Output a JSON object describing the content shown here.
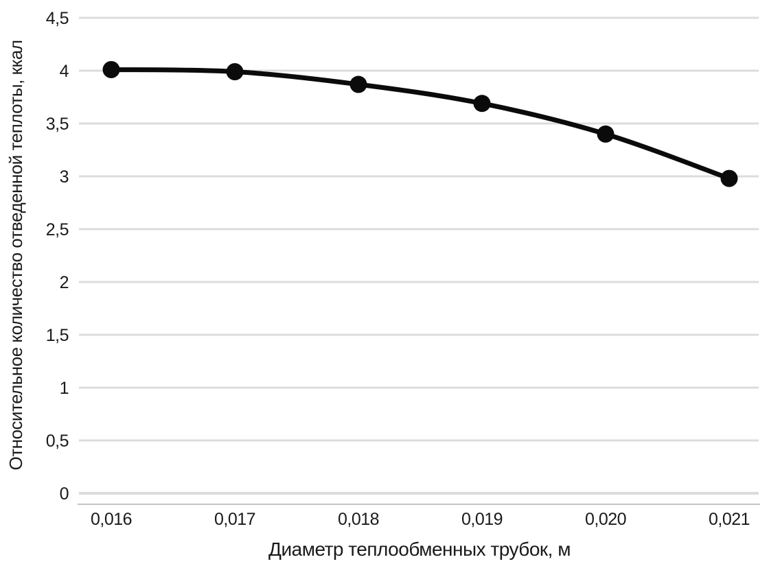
{
  "chart_data": {
    "type": "line",
    "title": "",
    "xlabel": "Диаметр теплообменных трубок, м",
    "ylabel": "Относительное количество отведенной теплоты, ккал",
    "categories": [
      "0,016",
      "0,017",
      "0,018",
      "0,019",
      "0,020",
      "0,021"
    ],
    "x_values": [
      0.016,
      0.017,
      0.018,
      0.019,
      0.02,
      0.021
    ],
    "series": [
      {
        "name": "Относительное количество отведенной теплоты, ккал",
        "values": [
          4.01,
          3.99,
          3.87,
          3.69,
          3.4,
          2.98
        ],
        "color": "#0b0b0b",
        "marker": "circle",
        "smooth": true
      }
    ],
    "ylim": [
      0,
      4.5
    ],
    "ytick_step": 0.5,
    "ytick_labels": [
      "0",
      "0,5",
      "1",
      "1,5",
      "2",
      "2,5",
      "3",
      "3,5",
      "4",
      "4,5"
    ],
    "grid": "horizontal",
    "gridline_color": "#dcdcdc",
    "axis_line_color": "#c4c4c4",
    "background_color": "#ffffff",
    "legend": "none"
  }
}
